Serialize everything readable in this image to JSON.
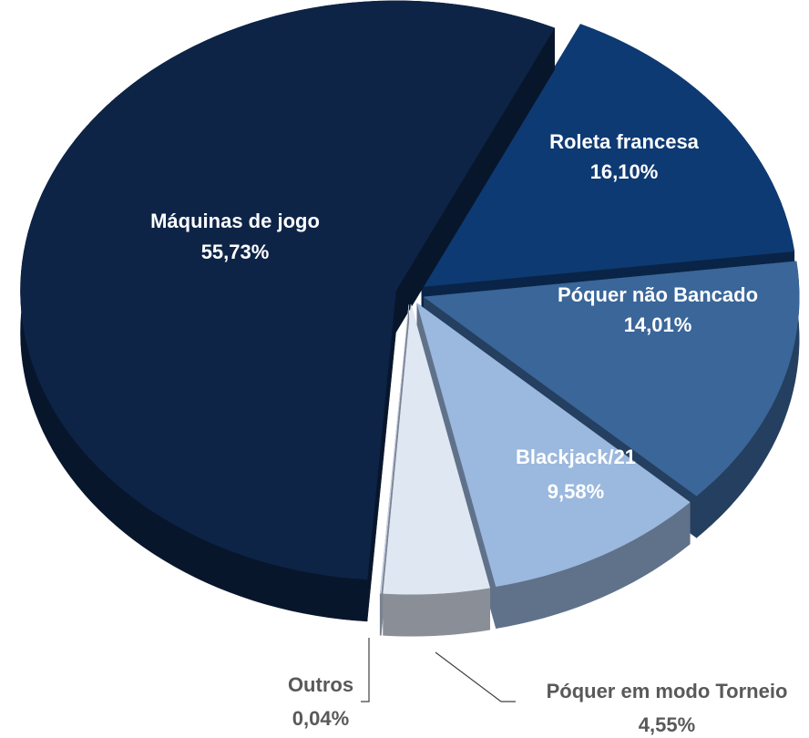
{
  "chart_data": {
    "type": "pie",
    "categories": [
      "Roleta francesa",
      "Póquer não Bancado",
      "Blackjack/21",
      "Póquer em modo Torneio",
      "Outros",
      "Máquinas de jogo"
    ],
    "values": [
      16.1,
      14.01,
      9.58,
      4.55,
      0.04,
      55.73
    ],
    "value_labels": [
      "16,10%",
      "14,01%",
      "9,58%",
      "4,55%",
      "0,04%",
      "55,73%"
    ],
    "colors": [
      "#0e3a73",
      "#3a6699",
      "#9bb8de",
      "#dfe7f3",
      "#c5d3e8",
      "#0d2447"
    ]
  }
}
